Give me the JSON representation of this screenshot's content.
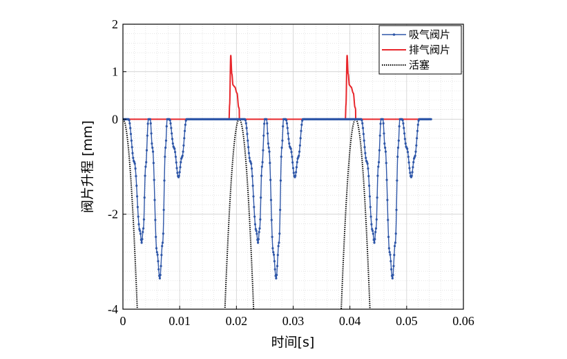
{
  "chart_data": {
    "type": "line",
    "title": "",
    "xlabel": "时间[s]",
    "ylabel": "阀片升程 [mm]",
    "xlim": [
      0,
      0.06
    ],
    "ylim": [
      -4,
      2
    ],
    "x_ticks": [
      "0",
      "0.01",
      "0.02",
      "0.03",
      "0.04",
      "0.05",
      "0.06"
    ],
    "y_ticks": [
      "2",
      "1",
      "0",
      "-2",
      "-4"
    ],
    "grid": true,
    "legend_position": "top-right",
    "series": [
      {
        "name": "吸气阀片",
        "color": "#2f57a8",
        "style": "line-with-markers",
        "period": 0.0205,
        "cycles": 2.65,
        "x": [
          0.0,
          0.001,
          0.002,
          0.003,
          0.0033,
          0.0036,
          0.004,
          0.0045,
          0.0048,
          0.0052,
          0.006,
          0.0065,
          0.007,
          0.0075,
          0.0078,
          0.0082,
          0.009,
          0.0098,
          0.0104,
          0.0112,
          0.0205
        ],
        "values": [
          0.0,
          0.0,
          -0.9,
          -2.35,
          -2.6,
          -2.3,
          -1.0,
          0.0,
          0.0,
          -0.6,
          -2.8,
          -3.35,
          -2.6,
          -0.6,
          0.0,
          0.0,
          -0.6,
          -1.22,
          -0.8,
          0.0,
          0.0
        ]
      },
      {
        "name": "排气阀片",
        "color": "#e8262b",
        "style": "line",
        "period": 0.0205,
        "cycles": 2.65,
        "x": [
          0.0,
          0.0187,
          0.0188,
          0.019,
          0.0192,
          0.0194,
          0.0197,
          0.0201,
          0.0204,
          0.0207,
          0.021,
          0.0205
        ],
        "values": [
          0.0,
          0.0,
          0.3,
          1.35,
          0.95,
          0.72,
          0.68,
          0.55,
          0.25,
          0.05,
          0.0,
          0.0
        ]
      },
      {
        "name": "活塞",
        "color": "#000000",
        "style": "dotted",
        "period": 0.0205,
        "center": 0.0205,
        "amplitude_mm": 28
      }
    ]
  }
}
